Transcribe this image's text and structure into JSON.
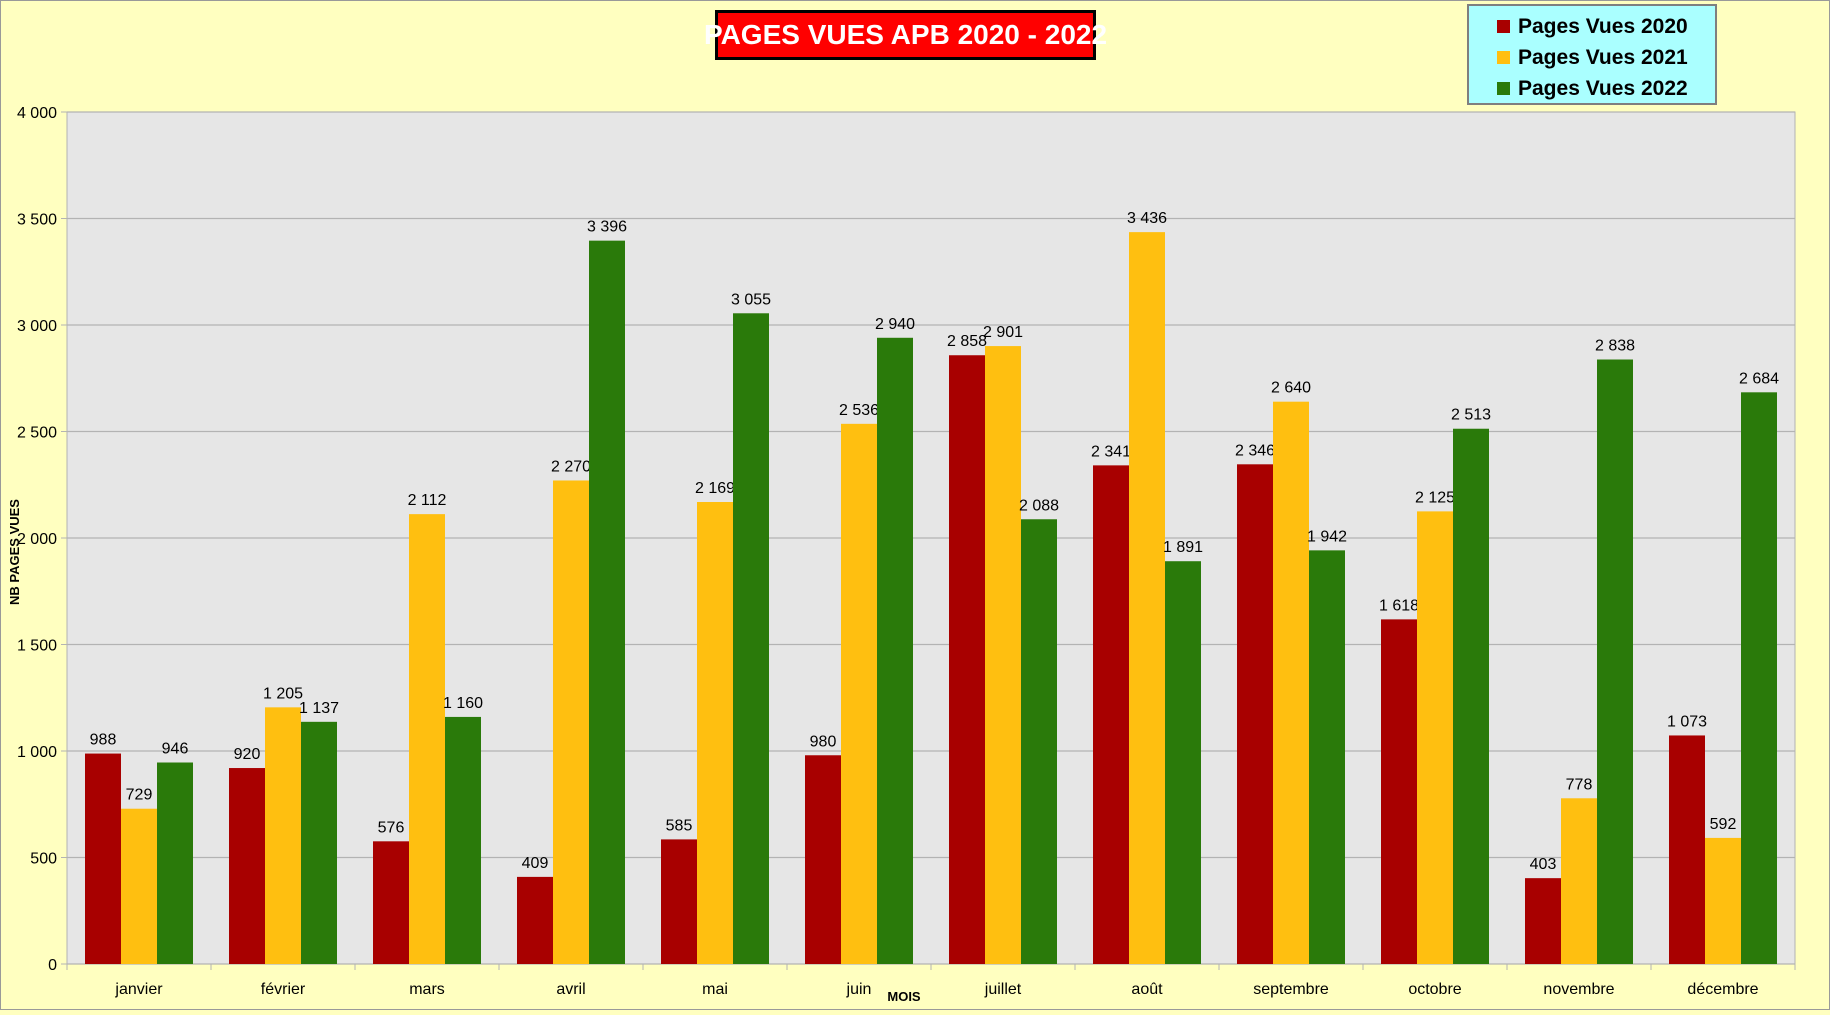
{
  "chart_data": {
    "type": "bar",
    "title": "PAGES VUES APB 2020 - 2022",
    "xlabel": "MOIS",
    "ylabel": "NB PAGES VUES",
    "ylim": [
      0,
      4000
    ],
    "yticks": [
      0,
      500,
      1000,
      1500,
      2000,
      2500,
      3000,
      3500,
      4000
    ],
    "ytick_labels": [
      "0",
      "500",
      "1 000",
      "1 500",
      "2 000",
      "2 500",
      "3 000",
      "3 500",
      "4 000"
    ],
    "grid": true,
    "legend_position": "top-right",
    "categories": [
      "janvier",
      "février",
      "mars",
      "avril",
      "mai",
      "juin",
      "juillet",
      "août",
      "septembre",
      "octobre",
      "novembre",
      "décembre"
    ],
    "series": [
      {
        "name": "Pages Vues 2020",
        "color": "#a80000",
        "values": [
          988,
          920,
          576,
          409,
          585,
          980,
          2858,
          2341,
          2346,
          1618,
          403,
          1073
        ],
        "labels": [
          "988",
          "920",
          "576",
          "409",
          "585",
          "980",
          "2 858",
          "2 341",
          "2 346",
          "1 618",
          "403",
          "1 073"
        ]
      },
      {
        "name": "Pages Vues 2021",
        "color": "#ffbf10",
        "values": [
          729,
          1205,
          2112,
          2270,
          2169,
          2536,
          2901,
          3436,
          2640,
          2125,
          778,
          592
        ],
        "labels": [
          "729",
          "1 205",
          "2 112",
          "2 270",
          "2 169",
          "2 536",
          "2 901",
          "3 436",
          "2 640",
          "2 125",
          "778",
          "592"
        ]
      },
      {
        "name": "Pages Vues 2022",
        "color": "#2a7a0a",
        "values": [
          946,
          1137,
          1160,
          3396,
          3055,
          2940,
          2088,
          1891,
          1942,
          2513,
          2838,
          2684
        ],
        "labels": [
          "946",
          "1 137",
          "1 160",
          "3 396",
          "3 055",
          "2 940",
          "2 088",
          "1 891",
          "1 942",
          "2 513",
          "2 838",
          "2 684"
        ]
      }
    ],
    "plot_background": "#e6e6e6",
    "page_background": "#ffffc0"
  }
}
